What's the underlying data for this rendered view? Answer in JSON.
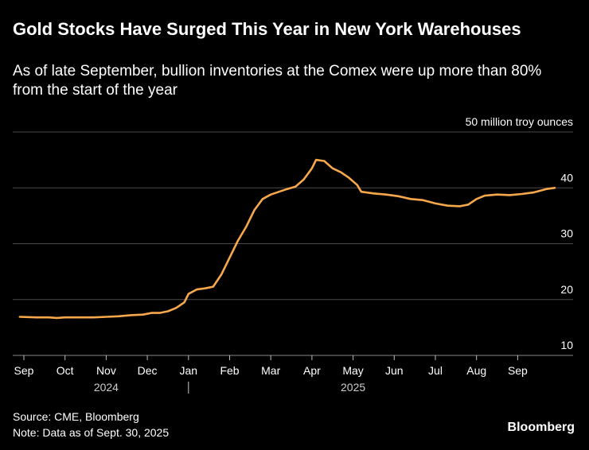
{
  "title": "Gold Stocks Have Surged This Year in New York Warehouses",
  "subtitle": "As of late September, bullion inventories at the Comex were up more than 80% from the start of the year",
  "source": "Source: CME, Bloomberg",
  "note": "Note: Data as of Sept. 30, 2025",
  "brand": "Bloomberg",
  "colors": {
    "line": "#f7a84a",
    "grid": "#4a4a4a",
    "background": "#000000",
    "text": "#ffffff"
  },
  "chart_data": {
    "type": "line",
    "unit_label": "50 million troy ounces",
    "ylim": [
      10,
      50
    ],
    "yticks": [
      10,
      20,
      30,
      40
    ],
    "grid": true,
    "xlim": [
      0,
      13.0
    ],
    "xticks": [
      {
        "label": "Sep",
        "x": 0
      },
      {
        "label": "Oct",
        "x": 1
      },
      {
        "label": "Nov",
        "x": 2
      },
      {
        "label": "Dec",
        "x": 3
      },
      {
        "label": "Jan",
        "x": 4
      },
      {
        "label": "Feb",
        "x": 5
      },
      {
        "label": "Mar",
        "x": 6
      },
      {
        "label": "Apr",
        "x": 7
      },
      {
        "label": "May",
        "x": 8
      },
      {
        "label": "Jun",
        "x": 9
      },
      {
        "label": "Jul",
        "x": 10
      },
      {
        "label": "Aug",
        "x": 11
      },
      {
        "label": "Sep",
        "x": 12
      }
    ],
    "year_labels": [
      {
        "label": "2024",
        "x": 2
      },
      {
        "label": "2025",
        "x": 8
      }
    ],
    "year_divider_x": 4,
    "series": [
      {
        "values": [
          [
            -0.1,
            16.9
          ],
          [
            0.3,
            16.8
          ],
          [
            0.6,
            16.8
          ],
          [
            0.8,
            16.7
          ],
          [
            1.0,
            16.8
          ],
          [
            1.3,
            16.8
          ],
          [
            1.7,
            16.8
          ],
          [
            2.0,
            16.9
          ],
          [
            2.3,
            17.0
          ],
          [
            2.6,
            17.2
          ],
          [
            2.9,
            17.3
          ],
          [
            3.1,
            17.6
          ],
          [
            3.3,
            17.6
          ],
          [
            3.5,
            17.9
          ],
          [
            3.7,
            18.5
          ],
          [
            3.9,
            19.5
          ],
          [
            4.0,
            21.0
          ],
          [
            4.2,
            21.8
          ],
          [
            4.4,
            22.0
          ],
          [
            4.6,
            22.3
          ],
          [
            4.8,
            24.5
          ],
          [
            5.0,
            27.5
          ],
          [
            5.2,
            30.5
          ],
          [
            5.4,
            33.0
          ],
          [
            5.6,
            36.0
          ],
          [
            5.8,
            38.0
          ],
          [
            6.0,
            38.8
          ],
          [
            6.2,
            39.3
          ],
          [
            6.4,
            39.8
          ],
          [
            6.6,
            40.2
          ],
          [
            6.8,
            41.5
          ],
          [
            7.0,
            43.5
          ],
          [
            7.1,
            45.0
          ],
          [
            7.3,
            44.8
          ],
          [
            7.5,
            43.5
          ],
          [
            7.7,
            42.8
          ],
          [
            7.9,
            41.8
          ],
          [
            8.1,
            40.5
          ],
          [
            8.2,
            39.3
          ],
          [
            8.5,
            39.0
          ],
          [
            8.8,
            38.8
          ],
          [
            9.1,
            38.5
          ],
          [
            9.4,
            38.0
          ],
          [
            9.7,
            37.8
          ],
          [
            10.0,
            37.2
          ],
          [
            10.3,
            36.8
          ],
          [
            10.6,
            36.7
          ],
          [
            10.8,
            37.0
          ],
          [
            11.0,
            38.0
          ],
          [
            11.2,
            38.6
          ],
          [
            11.5,
            38.8
          ],
          [
            11.8,
            38.7
          ],
          [
            12.1,
            38.9
          ],
          [
            12.4,
            39.2
          ],
          [
            12.7,
            39.8
          ],
          [
            12.9,
            40.0
          ]
        ]
      }
    ]
  }
}
